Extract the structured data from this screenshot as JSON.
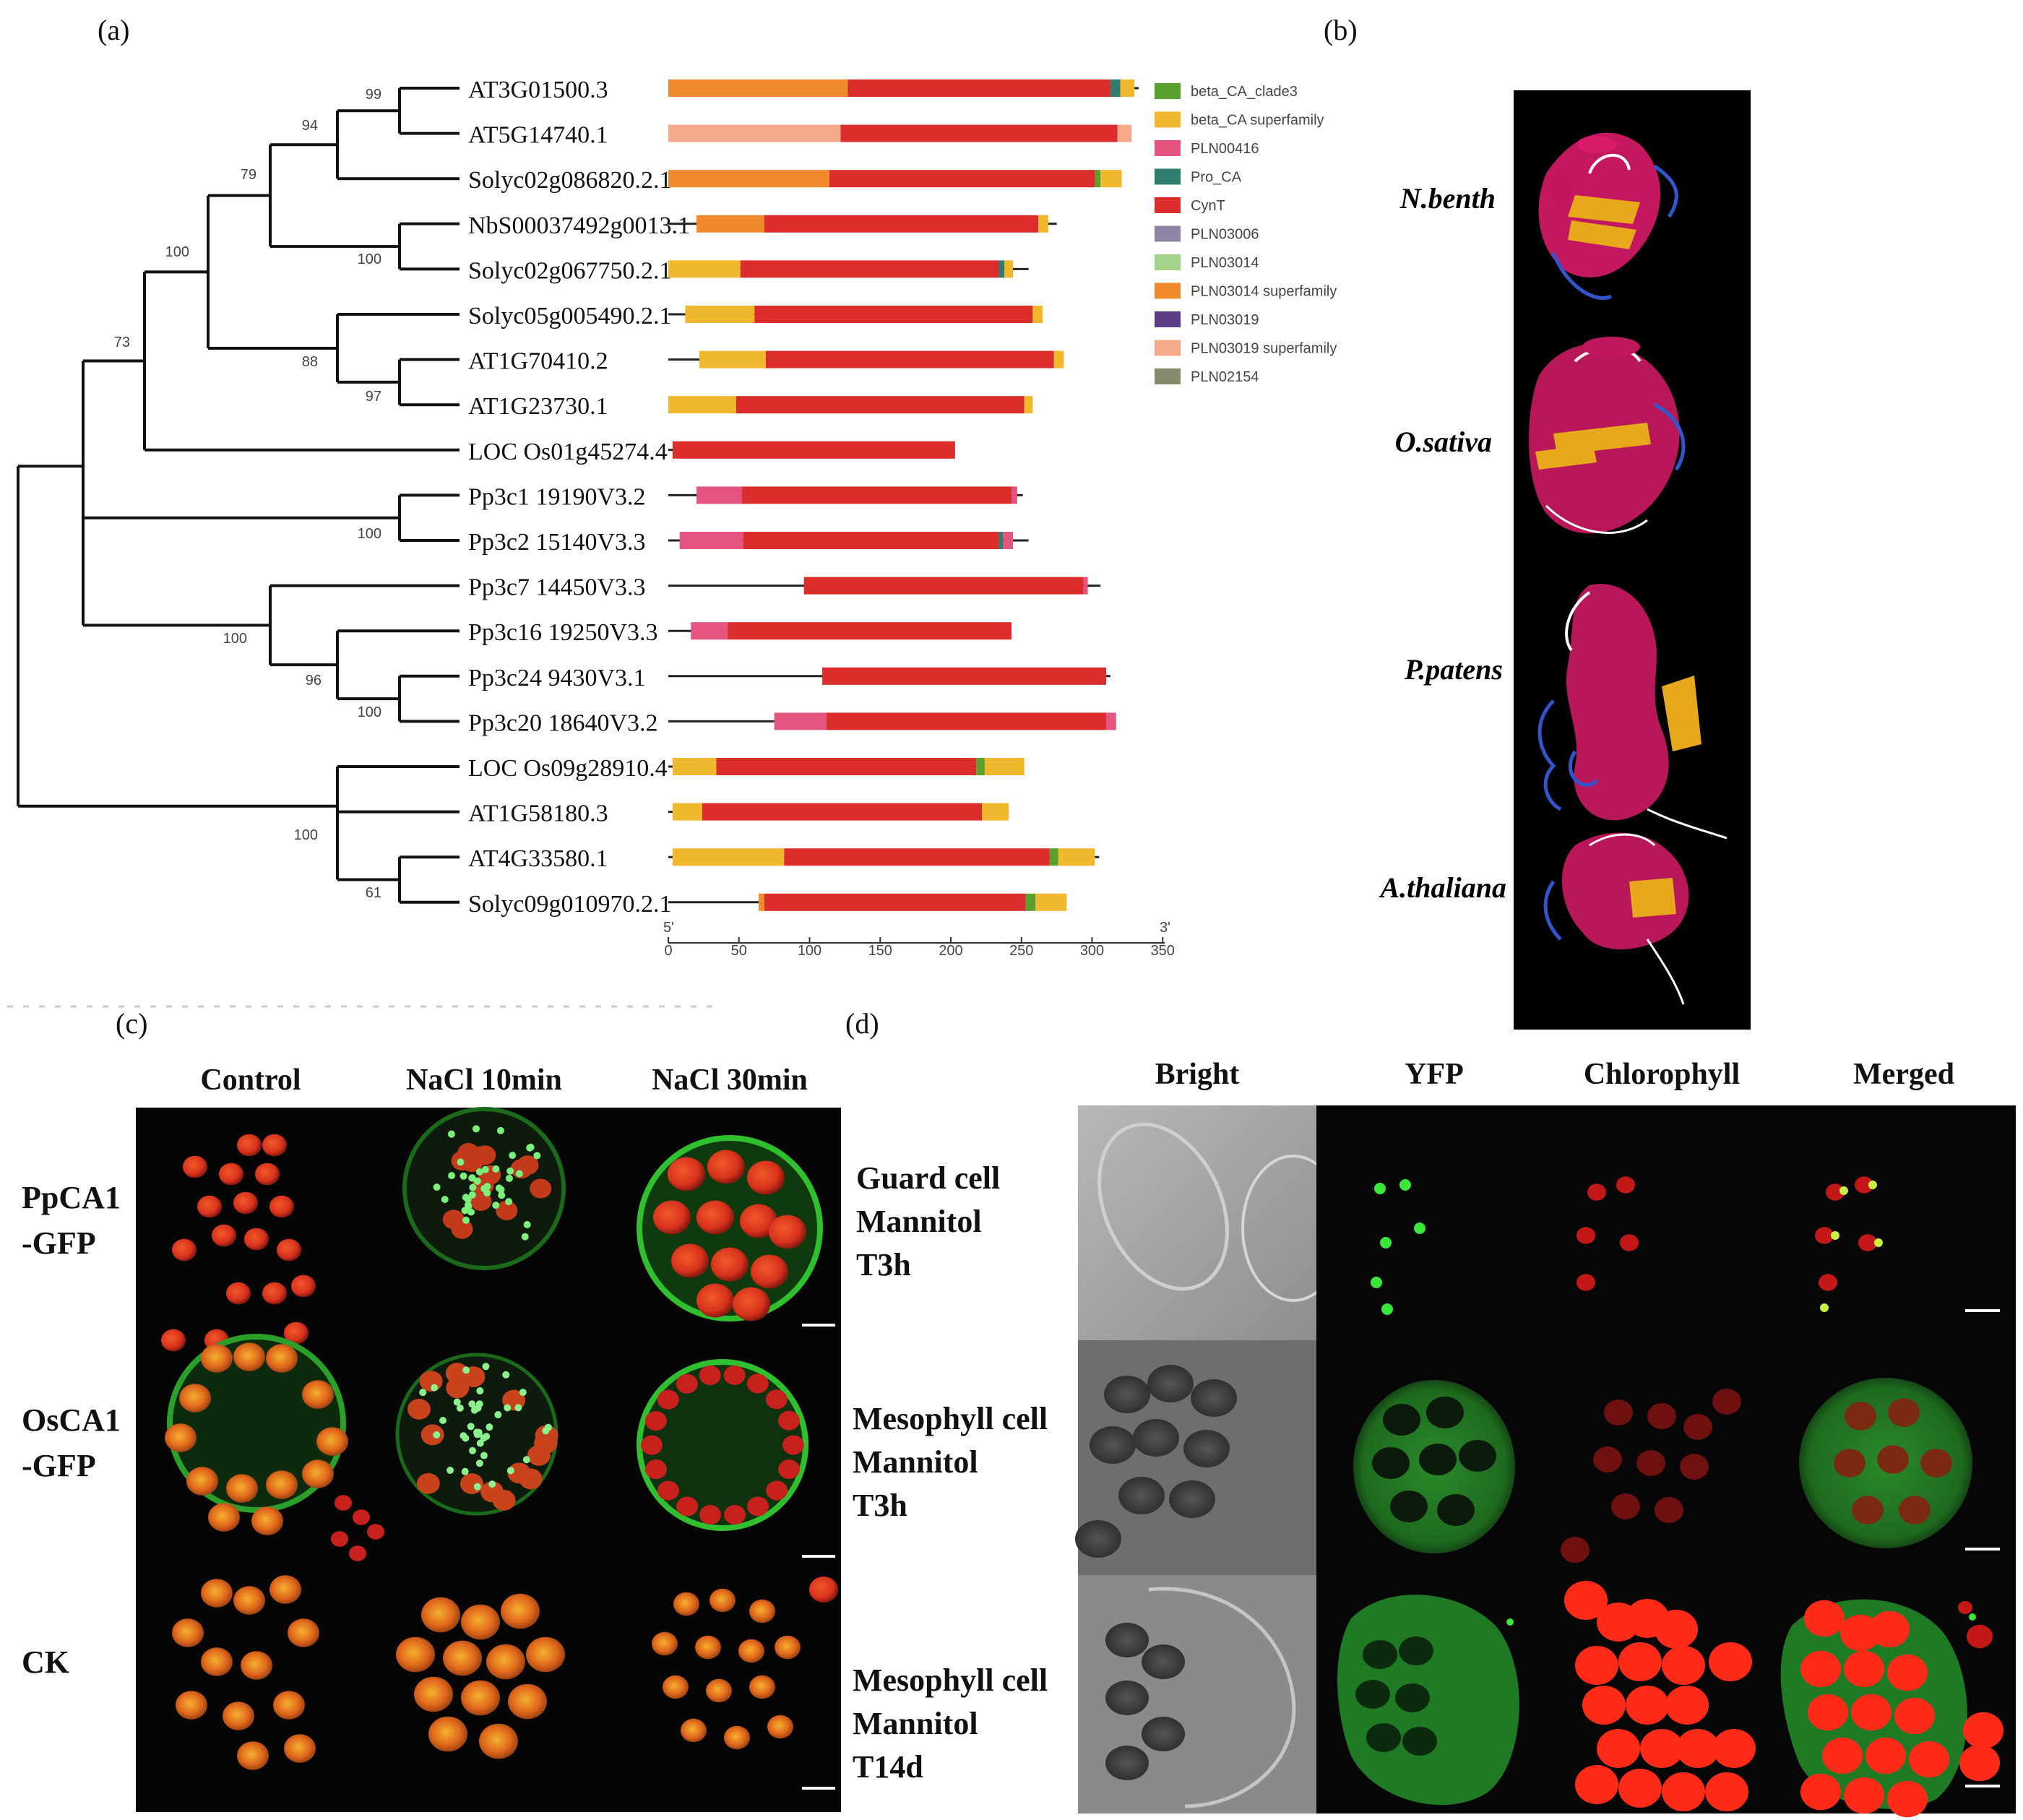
{
  "panels": {
    "a": {
      "label": "(a)",
      "boot_labels": [
        "99",
        "94",
        "79",
        "100",
        "100",
        "88",
        "97",
        "73",
        "100",
        "100",
        "96",
        "100",
        "100",
        "61"
      ],
      "legend": [
        {
          "name": "beta_CA_clade3",
          "color": "#5aa02c"
        },
        {
          "name": "beta_CA superfamily",
          "color": "#f0b92d"
        },
        {
          "name": "PLN00416",
          "color": "#e3547e"
        },
        {
          "name": "Pro_CA",
          "color": "#2e7d6e"
        },
        {
          "name": "CynT",
          "color": "#dc2d2d"
        },
        {
          "name": "PLN03006",
          "color": "#8e84a3"
        },
        {
          "name": "PLN03014",
          "color": "#a5d38a"
        },
        {
          "name": "PLN03014 superfamily",
          "color": "#f08a2a"
        },
        {
          "name": "PLN03019",
          "color": "#5b3d86"
        },
        {
          "name": "PLN03019 superfamily",
          "color": "#f5a98a"
        },
        {
          "name": "PLN02154",
          "color": "#858a6a"
        }
      ],
      "axis": {
        "ticks": [
          "0",
          "50",
          "100",
          "150",
          "200",
          "250",
          "300",
          "350"
        ],
        "end5": "5'",
        "end3": "3'"
      },
      "genes": [
        {
          "name": "AT3G01500.3",
          "length": 333,
          "domains": [
            {
              "start": 0,
              "end": 127,
              "color": "#f08a2a"
            },
            {
              "start": 127,
              "end": 313,
              "color": "#dc2d2d"
            },
            {
              "start": 313,
              "end": 320,
              "color": "#2e7d6e"
            },
            {
              "start": 320,
              "end": 330,
              "color": "#f0b92d"
            }
          ]
        },
        {
          "name": "AT5G14740.1",
          "length": 328,
          "domains": [
            {
              "start": 0,
              "end": 122,
              "color": "#f5a98a"
            },
            {
              "start": 122,
              "end": 318,
              "color": "#dc2d2d"
            },
            {
              "start": 318,
              "end": 328,
              "color": "#f5a98a"
            }
          ]
        },
        {
          "name": "Solyc02g086820.2.1",
          "length": 321,
          "domains": [
            {
              "start": 0,
              "end": 114,
              "color": "#f08a2a"
            },
            {
              "start": 114,
              "end": 302,
              "color": "#dc2d2d"
            },
            {
              "start": 302,
              "end": 306,
              "color": "#5aa02c"
            },
            {
              "start": 306,
              "end": 321,
              "color": "#f0b92d"
            }
          ]
        },
        {
          "name": "NbS00037492g0013.1",
          "length": 275,
          "domains": [
            {
              "start": 20,
              "end": 68,
              "color": "#f08a2a"
            },
            {
              "start": 68,
              "end": 262,
              "color": "#dc2d2d"
            },
            {
              "start": 262,
              "end": 269,
              "color": "#f0b92d"
            }
          ]
        },
        {
          "name": "Solyc02g067750.2.1",
          "length": 255,
          "domains": [
            {
              "start": 0,
              "end": 51,
              "color": "#f0b92d"
            },
            {
              "start": 51,
              "end": 234,
              "color": "#dc2d2d"
            },
            {
              "start": 234,
              "end": 238,
              "color": "#2e7d6e"
            },
            {
              "start": 238,
              "end": 244,
              "color": "#f0b92d"
            }
          ]
        },
        {
          "name": "Solyc05g005490.2.1",
          "length": 265,
          "domains": [
            {
              "start": 12,
              "end": 61,
              "color": "#f0b92d"
            },
            {
              "start": 61,
              "end": 258,
              "color": "#dc2d2d"
            },
            {
              "start": 258,
              "end": 265,
              "color": "#f0b92d"
            }
          ]
        },
        {
          "name": "AT1G70410.2",
          "length": 280,
          "domains": [
            {
              "start": 22,
              "end": 69,
              "color": "#f0b92d"
            },
            {
              "start": 69,
              "end": 273,
              "color": "#dc2d2d"
            },
            {
              "start": 273,
              "end": 280,
              "color": "#f0b92d"
            }
          ]
        },
        {
          "name": "AT1G23730.1",
          "length": 258,
          "domains": [
            {
              "start": 0,
              "end": 48,
              "color": "#f0b92d"
            },
            {
              "start": 48,
              "end": 252,
              "color": "#dc2d2d"
            },
            {
              "start": 252,
              "end": 258,
              "color": "#f0b92d"
            }
          ]
        },
        {
          "name": "LOC_Os01g45274.4",
          "length": 203,
          "domains": [
            {
              "start": 3,
              "end": 203,
              "color": "#dc2d2d"
            }
          ]
        },
        {
          "name": "Pp3c1_19190V3.2",
          "length": 251,
          "domains": [
            {
              "start": 20,
              "end": 52,
              "color": "#e3547e"
            },
            {
              "start": 52,
              "end": 243,
              "color": "#dc2d2d"
            },
            {
              "start": 243,
              "end": 247,
              "color": "#e3547e"
            }
          ]
        },
        {
          "name": "Pp3c2_15140V3.3",
          "length": 255,
          "domains": [
            {
              "start": 8,
              "end": 53,
              "color": "#e3547e"
            },
            {
              "start": 53,
              "end": 234,
              "color": "#dc2d2d"
            },
            {
              "start": 234,
              "end": 237,
              "color": "#2e7d6e"
            },
            {
              "start": 237,
              "end": 244,
              "color": "#e3547e"
            }
          ]
        },
        {
          "name": "Pp3c7_14450V3.3",
          "length": 306,
          "domains": [
            {
              "start": 96,
              "end": 294,
              "color": "#dc2d2d"
            },
            {
              "start": 294,
              "end": 297,
              "color": "#e3547e"
            }
          ]
        },
        {
          "name": "Pp3c16_19250V3.3",
          "length": 243,
          "domains": [
            {
              "start": 16,
              "end": 42,
              "color": "#e3547e"
            },
            {
              "start": 42,
              "end": 243,
              "color": "#dc2d2d"
            }
          ]
        },
        {
          "name": "Pp3c24_9430V3.1",
          "length": 313,
          "domains": [
            {
              "start": 109,
              "end": 310,
              "color": "#dc2d2d"
            }
          ]
        },
        {
          "name": "Pp3c20_18640V3.2",
          "length": 317,
          "domains": [
            {
              "start": 75,
              "end": 112,
              "color": "#e3547e"
            },
            {
              "start": 112,
              "end": 310,
              "color": "#dc2d2d"
            },
            {
              "start": 310,
              "end": 317,
              "color": "#e3547e"
            }
          ]
        },
        {
          "name": "LOC_Os09g28910.4",
          "length": 252,
          "domains": [
            {
              "start": 3,
              "end": 34,
              "color": "#f0b92d"
            },
            {
              "start": 34,
              "end": 218,
              "color": "#dc2d2d"
            },
            {
              "start": 218,
              "end": 224,
              "color": "#5aa02c"
            },
            {
              "start": 224,
              "end": 252,
              "color": "#f0b92d"
            }
          ]
        },
        {
          "name": "AT1G58180.3",
          "length": 241,
          "domains": [
            {
              "start": 3,
              "end": 24,
              "color": "#f0b92d"
            },
            {
              "start": 24,
              "end": 222,
              "color": "#dc2d2d"
            },
            {
              "start": 222,
              "end": 241,
              "color": "#f0b92d"
            }
          ]
        },
        {
          "name": "AT4G33580.1",
          "length": 305,
          "domains": [
            {
              "start": 3,
              "end": 82,
              "color": "#f0b92d"
            },
            {
              "start": 82,
              "end": 270,
              "color": "#dc2d2d"
            },
            {
              "start": 270,
              "end": 276,
              "color": "#5aa02c"
            },
            {
              "start": 276,
              "end": 302,
              "color": "#f0b92d"
            }
          ]
        },
        {
          "name": "Solyc09g010970.2.1",
          "length": 282,
          "domains": [
            {
              "start": 64,
              "end": 68,
              "color": "#f08a2a"
            },
            {
              "start": 68,
              "end": 253,
              "color": "#dc2d2d"
            },
            {
              "start": 253,
              "end": 260,
              "color": "#5aa02c"
            },
            {
              "start": 260,
              "end": 282,
              "color": "#f0b92d"
            }
          ]
        }
      ]
    },
    "b": {
      "label": "(b)",
      "species": [
        "N.benth",
        "O.sativa",
        "P.patens",
        "A.thaliana"
      ]
    },
    "c": {
      "label": "(c)",
      "columns": [
        "Control",
        "NaCl 10min",
        "NaCl 30min"
      ],
      "rows": [
        "PpCA1\n-GFP",
        "OsCA1\n-GFP",
        "CK"
      ]
    },
    "d": {
      "label": "(d)",
      "columns": [
        "Bright",
        "YFP",
        "Chlorophyll",
        "Merged"
      ],
      "rows": [
        "Guard cell\nMannitol\nT3h",
        "Mesophyll cell\nMannitol\nT3h",
        "Mesophyll cell\nMannitol\nT14d"
      ]
    }
  }
}
